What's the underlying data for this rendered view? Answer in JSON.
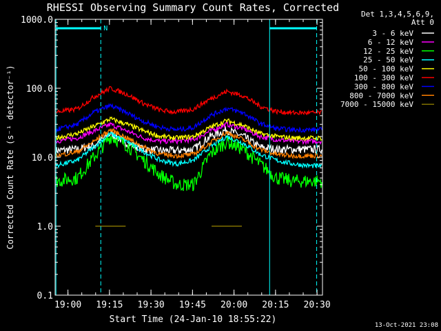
{
  "chart_data": {
    "type": "line",
    "title": "RHESSI Observing Summary Count Rates, Corrected",
    "xlabel": "Start Time (24-Jan-10 18:55:22)",
    "ylabel": "Corrected Count Rate (s⁻¹ detector⁻¹)",
    "y_scale": "log",
    "ylim": [
      0.1,
      1000
    ],
    "xlim": [
      "18:55:22",
      "20:32:00"
    ],
    "x_ticks": [
      "19:00",
      "19:15",
      "19:30",
      "19:45",
      "20:00",
      "20:15",
      "20:30"
    ],
    "y_ticks": [
      "0.1",
      "1.0",
      "10.0",
      "100.0",
      "1000.0"
    ],
    "grid": false,
    "legend_position": "top-right",
    "legend_header": [
      "Det 1,3,4,5,6,9,",
      "Att 0"
    ],
    "attenuator_label": "N",
    "timestamp": "13-Oct-2021 23:08",
    "x_minutes": [
      0,
      8,
      14,
      20,
      26,
      32,
      38,
      44,
      50,
      56,
      62,
      68,
      74,
      80,
      86,
      92,
      97
    ],
    "series": [
      {
        "name": "3 - 6 keV",
        "color": "#ffffff",
        "values": [
          12.5,
          13,
          15,
          22,
          16,
          13,
          12.5,
          12.5,
          13,
          20,
          25,
          20,
          14,
          13,
          13,
          13,
          13
        ]
      },
      {
        "name": "6 - 12 keV",
        "color": "#ff00ff",
        "values": [
          17,
          19,
          24,
          30,
          24,
          19,
          17,
          17,
          18,
          24,
          30,
          26,
          20,
          18,
          17,
          17,
          17
        ]
      },
      {
        "name": "12 - 25 keV",
        "color": "#00ff00",
        "values": [
          4.5,
          5,
          10,
          20,
          15,
          9,
          5.5,
          4,
          4,
          11,
          17,
          13,
          8,
          5,
          4.5,
          4.5,
          4.5
        ]
      },
      {
        "name": "25 - 50 keV",
        "color": "#00ffff",
        "values": [
          7.5,
          9,
          14,
          22,
          17,
          12,
          9,
          8,
          9,
          14,
          20,
          16,
          11,
          9,
          8,
          7.5,
          7.5
        ]
      },
      {
        "name": "50 - 100 keV",
        "color": "#ffff00",
        "values": [
          19,
          22,
          28,
          36,
          30,
          24,
          20,
          19,
          20,
          27,
          34,
          29,
          22,
          20,
          19,
          19,
          19
        ]
      },
      {
        "name": "100 - 300 keV",
        "color": "#ff0000",
        "values": [
          45,
          50,
          75,
          100,
          82,
          60,
          48,
          45,
          50,
          70,
          90,
          78,
          55,
          46,
          44,
          44,
          44
        ]
      },
      {
        "name": "300 - 800 keV",
        "color": "#0000ff",
        "values": [
          25,
          30,
          45,
          56,
          44,
          33,
          27,
          25,
          27,
          40,
          51,
          44,
          31,
          26,
          25,
          25,
          25
        ]
      },
      {
        "name": "800 - 7000 keV",
        "color": "#ff8000",
        "values": [
          10.5,
          12,
          17,
          25,
          19,
          14,
          11,
          10.5,
          11,
          16,
          23,
          18,
          13,
          11,
          10.5,
          10.5,
          10.5
        ]
      },
      {
        "name": "7000 - 15000 keV",
        "color": "#807000",
        "values": [
          null,
          null,
          null,
          1.0,
          null,
          null,
          null,
          null,
          null,
          null,
          1.0,
          null,
          null,
          null,
          null,
          null,
          null
        ]
      }
    ]
  }
}
